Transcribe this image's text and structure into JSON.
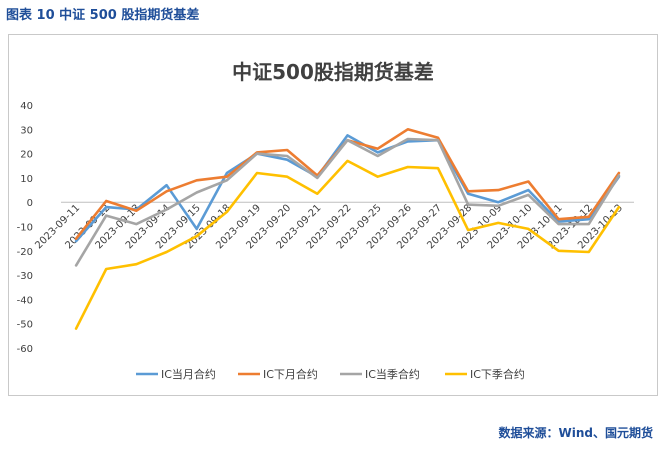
{
  "caption": "图表 10  中证 500 股指期货基差",
  "source": "数据来源：Wind、国元期货",
  "chart_data": {
    "type": "line",
    "title": "中证500股指期货基差",
    "xlabel": "",
    "ylabel": "",
    "ylim": [
      -60,
      40
    ],
    "yticks": [
      40,
      30,
      20,
      10,
      0,
      -10,
      -20,
      -30,
      -40,
      -50,
      -60
    ],
    "grid": false,
    "legend_position": "bottom",
    "categories": [
      "2023-09-11",
      "2023-09-12",
      "2023-09-13",
      "2023-09-14",
      "2023-09-15",
      "2023-09-18",
      "2023-09-19",
      "2023-09-20",
      "2023-09-21",
      "2023-09-22",
      "2023-09-25",
      "2023-09-26",
      "2023-09-27",
      "2023-09-28",
      "2023-10-09",
      "2023-10-10",
      "2023-10-11",
      "2023-10-12",
      "2023-10-13"
    ],
    "series": [
      {
        "name": "IC当月合约",
        "color": "#5b9bd5",
        "values": [
          -16,
          -2,
          -3,
          7,
          -11,
          12,
          20,
          17.5,
          10.5,
          27.5,
          20.5,
          25,
          25.5,
          3.5,
          0,
          5,
          -8,
          -7,
          10.5
        ]
      },
      {
        "name": "IC下月合约",
        "color": "#ed7d31",
        "values": [
          -15,
          0.5,
          -3.5,
          4.5,
          9,
          10.5,
          20.5,
          21.5,
          11,
          25.5,
          22,
          30,
          26.5,
          4.5,
          5,
          8.5,
          -7,
          -6,
          12
        ]
      },
      {
        "name": "IC当季合约",
        "color": "#a5a5a5",
        "values": [
          -26,
          -5.5,
          -9,
          -3,
          4,
          9,
          20,
          19,
          10,
          25.5,
          19,
          26,
          25.5,
          -1,
          -1.5,
          3,
          -9,
          -9,
          11
        ]
      },
      {
        "name": "IC下季合约",
        "color": "#ffc000",
        "values": [
          -52,
          -27.5,
          -25.5,
          -20.5,
          -14,
          -4,
          12,
          10.5,
          3.5,
          17,
          10.5,
          14.5,
          14,
          -11.5,
          -8.5,
          -11,
          -20,
          -20.5,
          -2
        ]
      }
    ]
  }
}
